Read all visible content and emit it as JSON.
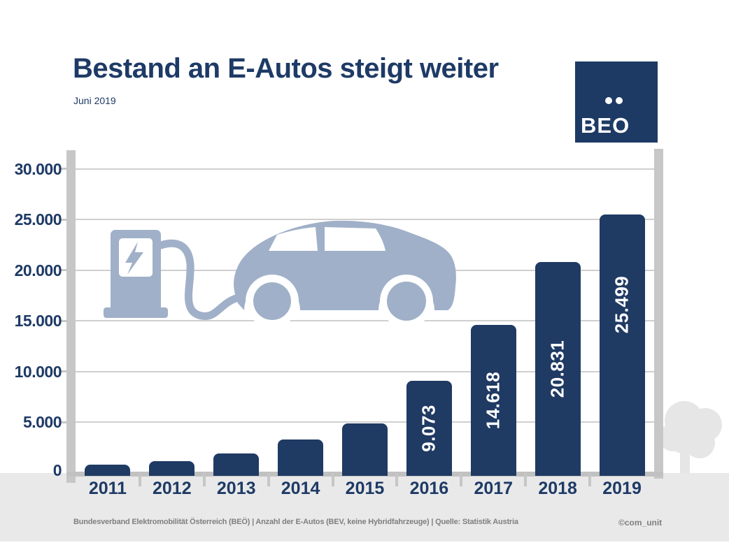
{
  "header": {
    "title": "Bestand an E-Autos steigt weiter",
    "subtitle": "Juni 2019"
  },
  "logo": {
    "text": "BEO",
    "umlaut_dots": 2,
    "background_color": "#1d3a64",
    "text_color": "#ffffff"
  },
  "chart_data": {
    "type": "bar",
    "title": "Bestand an E-Autos steigt weiter",
    "subtitle": "Juni 2019",
    "categories": [
      "2011",
      "2012",
      "2013",
      "2014",
      "2015",
      "2016",
      "2017",
      "2018",
      "2019"
    ],
    "values": [
      800,
      1200,
      1900,
      3300,
      4900,
      9073,
      14618,
      20831,
      25499
    ],
    "value_labels": [
      null,
      null,
      null,
      null,
      null,
      "9.073",
      "14.618",
      "20.831",
      "25.499"
    ],
    "values_estimated": [
      true,
      true,
      true,
      true,
      true,
      false,
      false,
      false,
      false
    ],
    "xlabel": "",
    "ylabel": "",
    "ylim": [
      0,
      31000
    ],
    "yticks": [
      {
        "value": 0,
        "label": "0"
      },
      {
        "value": 5000,
        "label": "5.000"
      },
      {
        "value": 10000,
        "label": "10.000"
      },
      {
        "value": 15000,
        "label": "15.000"
      },
      {
        "value": 20000,
        "label": "20.000"
      },
      {
        "value": 25000,
        "label": "25.000"
      },
      {
        "value": 30000,
        "label": "30.000"
      }
    ],
    "grid": true,
    "legend": false,
    "bar_color": "#1f3a63",
    "bar_label_color": "#ffffff",
    "gridline_color": "#cfcfcf",
    "axis_pillar_color": "#c7c7c7",
    "tick_label_color": "#1e3a66"
  },
  "illustration": {
    "description": "charging-station-and-electric-car",
    "color": "#a0b0c8",
    "tree_color": "#e6e6e6"
  },
  "footer": {
    "source": "Bundesverband Elektromobilität Österreich (BEÖ) | Anzahl der E-Autos (BEV, keine Hybridfahrzeuge) | Quelle: Statistik Austria",
    "credit": "©com_unit"
  }
}
